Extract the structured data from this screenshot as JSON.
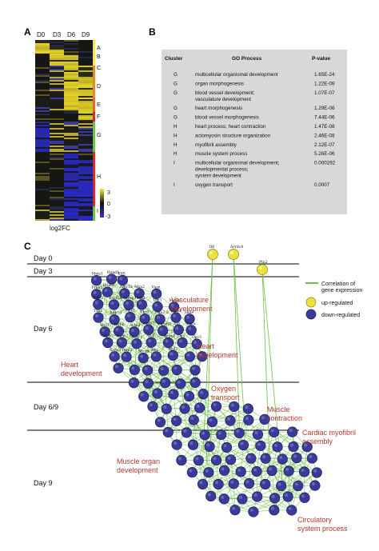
{
  "panel_a": {
    "label": "A",
    "columns": [
      "D0",
      "D3",
      "D6",
      "D9"
    ],
    "clusters": [
      {
        "name": "A",
        "color": "#f2e64a"
      },
      {
        "name": "B",
        "color": "#f2e64a"
      },
      {
        "name": "C",
        "color": "#f2e64a"
      },
      {
        "name": "D",
        "color": "#e08a2b"
      },
      {
        "name": "E",
        "color": "#e06a2b"
      },
      {
        "name": "F",
        "color": "#d42a2a"
      },
      {
        "name": "G",
        "color": "#6cc04a"
      },
      {
        "name": "H",
        "color": "#d42a2a"
      },
      {
        "name": "I",
        "color": "#6cc04a"
      }
    ],
    "colorbar": {
      "ticks": [
        "3",
        "0",
        "-3"
      ],
      "label": "log2FC"
    }
  },
  "panel_b": {
    "label": "B",
    "headers": {
      "cluster": "Cluster",
      "process": "GO Process",
      "pvalue": "P-value"
    },
    "rows": [
      {
        "cluster": "G",
        "process": [
          "multicellular organismal development"
        ],
        "pvalue": "1.65E-24"
      },
      {
        "cluster": "G",
        "process": [
          "organ morphogenesis"
        ],
        "pvalue": "1.22E-09"
      },
      {
        "cluster": "G",
        "process": [
          "blood vessel development;",
          "vasculature development"
        ],
        "pvalue": "1.07E-07"
      },
      {
        "cluster": "G",
        "process": [
          "heart morphogenesis"
        ],
        "pvalue": "1.29E-06"
      },
      {
        "cluster": "G",
        "process": [
          "blood vessel morphogenesis"
        ],
        "pvalue": "7.44E-06"
      },
      {
        "cluster": "H",
        "process": [
          "heart process; heart contraction"
        ],
        "pvalue": "1.47E-08"
      },
      {
        "cluster": "H",
        "process": [
          "actomyosin structure organization"
        ],
        "pvalue": "2.46E-08"
      },
      {
        "cluster": "H",
        "process": [
          "myofibril assembly"
        ],
        "pvalue": "2.12E-07"
      },
      {
        "cluster": "H",
        "process": [
          "muscle system process"
        ],
        "pvalue": "5.26E-06"
      },
      {
        "cluster": "I",
        "process": [
          "multicellular organismal development;",
          "developmental process;",
          "system development"
        ],
        "pvalue": "0.000292"
      },
      {
        "cluster": "I",
        "process": [
          "oxygen transport"
        ],
        "pvalue": "0.0007"
      }
    ]
  },
  "panel_c": {
    "label": "C",
    "days": [
      "Day 0",
      "Day 3",
      "Day 6",
      "Day 6/9",
      "Day 9"
    ],
    "legend": {
      "edge": [
        "Correlation of",
        "gene expression"
      ],
      "up": "up-regulated",
      "down": "down-regulated"
    },
    "colors": {
      "edge": "#6cc04a",
      "up": "#e8e23a",
      "down": "#3a3a9a"
    },
    "regions": [
      [
        "Vasculature",
        "development"
      ],
      [
        "Heart",
        "development"
      ],
      [
        "Heart",
        "development"
      ],
      [
        "Oxygen",
        "transport"
      ],
      [
        "Muscle",
        "contraction"
      ],
      [
        "Cardiac myofibril",
        "assembly"
      ],
      [
        "Muscle organ",
        "development"
      ],
      [
        "Circulatory",
        "system process"
      ]
    ],
    "up_genes": [
      "Il6",
      "Arrdc4",
      "Ptx2"
    ],
    "named_genes": [
      "Meis1",
      "Hand1",
      "Klf5",
      "Prok1",
      "Hoxb6",
      "Agtr1a",
      "Mxx2",
      "Vasn",
      "Cdh2",
      "Foxf1a",
      "Mesp1",
      "Nfat",
      "Tbx1",
      "Mef2c",
      "Tbx2",
      "Rdh10",
      "Pitx2",
      "Tbx5",
      "Nkx2-5",
      "Hba1",
      "Hbb",
      "Myl7",
      "Myh6",
      "Actn2",
      "Lmo7",
      "Pdlim3",
      "Ttn",
      "Sgca",
      "Myh7",
      "Tnnt2",
      "Actc1",
      "Myl3",
      "Sepn1",
      "Des",
      "Cav3",
      "Csrp3",
      "Tnni3",
      "Myom1",
      "Mb",
      "Myl2"
    ]
  }
}
